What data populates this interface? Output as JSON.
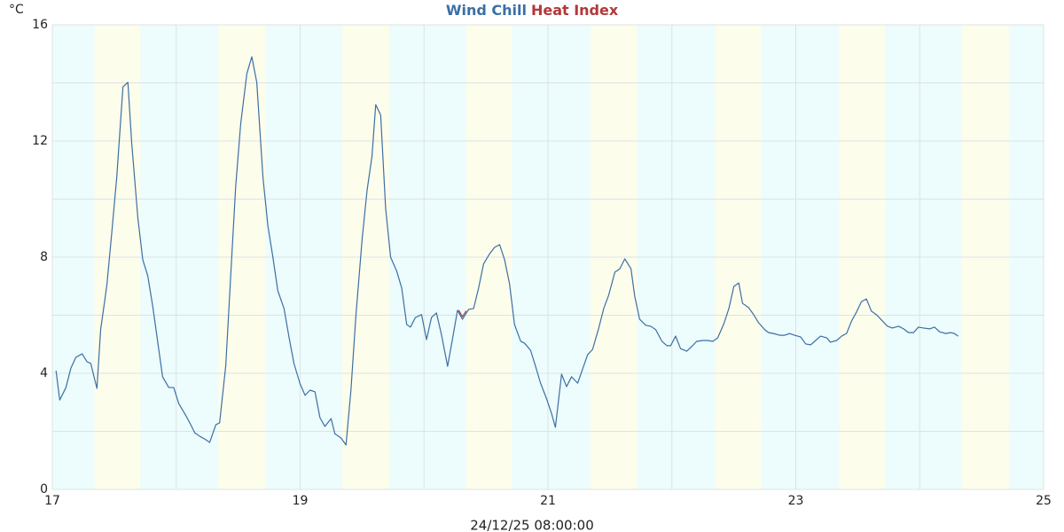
{
  "chart_data": {
    "type": "line",
    "legend": "top",
    "ylabel": "°C",
    "xlabel": "24/12/25 08:00:00",
    "xlim": [
      17,
      25
    ],
    "ylim": [
      0,
      16
    ],
    "xticks": [
      17,
      19,
      21,
      23,
      25
    ],
    "x_minor_grid": [
      18,
      20,
      22,
      24
    ],
    "yticks": [
      0,
      4,
      8,
      12,
      16
    ],
    "y_minor_grid": [
      2,
      6,
      10,
      14
    ],
    "grid": true,
    "night_color": "#edfcfc",
    "day_color": "#fdfdec",
    "daylight": [
      [
        17.34,
        17.71
      ],
      [
        18.34,
        18.72
      ],
      [
        19.34,
        19.72
      ],
      [
        20.34,
        20.71
      ],
      [
        21.34,
        21.72
      ],
      [
        22.35,
        22.72
      ],
      [
        23.35,
        23.72
      ],
      [
        24.34,
        24.72
      ]
    ],
    "series": [
      {
        "name": "Wind Chill",
        "color": "#3b6fa6",
        "x": [
          17.03,
          17.06,
          17.11,
          17.15,
          17.19,
          17.24,
          17.28,
          17.31,
          17.36,
          17.39,
          17.44,
          17.48,
          17.52,
          17.57,
          17.61,
          17.64,
          17.69,
          17.73,
          17.77,
          17.81,
          17.85,
          17.89,
          17.94,
          17.98,
          18.02,
          18.07,
          18.11,
          18.15,
          18.19,
          18.24,
          18.27,
          18.32,
          18.35,
          18.4,
          18.44,
          18.48,
          18.52,
          18.57,
          18.61,
          18.65,
          18.7,
          18.74,
          18.78,
          18.82,
          18.87,
          18.91,
          18.95,
          19.0,
          19.04,
          19.08,
          19.12,
          19.16,
          19.2,
          19.25,
          19.28,
          19.33,
          19.37,
          19.41,
          19.45,
          19.5,
          19.54,
          19.58,
          19.61,
          19.65,
          19.69,
          19.73,
          19.78,
          19.82,
          19.86,
          19.89,
          19.93,
          19.98,
          20.02,
          20.06,
          20.1,
          20.14,
          20.19,
          20.23,
          20.27,
          20.31,
          20.36,
          20.4,
          20.44,
          20.48,
          20.53,
          20.57,
          20.61,
          20.65,
          20.69,
          20.73,
          20.78,
          20.81,
          20.86,
          20.9,
          20.94,
          20.99,
          21.03,
          21.06,
          21.11,
          21.15,
          21.19,
          21.24,
          21.28,
          21.32,
          21.36,
          21.41,
          21.45,
          21.49,
          21.54,
          21.58,
          21.62,
          21.67,
          21.7,
          21.74,
          21.79,
          21.83,
          21.87,
          21.92,
          21.96,
          21.99,
          22.03,
          22.07,
          22.12,
          22.16,
          22.2,
          22.25,
          22.29,
          22.33,
          22.37,
          22.42,
          22.46,
          22.5,
          22.54,
          22.57,
          22.62,
          22.66,
          22.7,
          22.75,
          22.78,
          22.82,
          22.87,
          22.91,
          22.95,
          22.99,
          23.04,
          23.08,
          23.12,
          23.16,
          23.2,
          23.25,
          23.28,
          23.33,
          23.37,
          23.41,
          23.45,
          23.49,
          23.53,
          23.57,
          23.61,
          23.65,
          23.7,
          23.74,
          23.78,
          23.83,
          23.87,
          23.91,
          23.95,
          23.99,
          24.03,
          24.08,
          24.12,
          24.16,
          24.21,
          24.25,
          24.28,
          24.31
        ],
        "values": [
          4.09,
          3.08,
          3.51,
          4.18,
          4.55,
          4.67,
          4.4,
          4.34,
          3.48,
          5.5,
          7.02,
          8.85,
          10.75,
          13.86,
          14.02,
          11.97,
          9.37,
          7.91,
          7.36,
          6.32,
          5.1,
          3.88,
          3.51,
          3.51,
          2.96,
          2.6,
          2.29,
          1.95,
          1.83,
          1.71,
          1.62,
          2.23,
          2.29,
          4.27,
          7.39,
          10.44,
          12.58,
          14.32,
          14.9,
          14.02,
          10.75,
          9.07,
          8.0,
          6.84,
          6.23,
          5.25,
          4.34,
          3.63,
          3.24,
          3.42,
          3.36,
          2.47,
          2.17,
          2.44,
          1.92,
          1.77,
          1.53,
          3.42,
          5.98,
          8.61,
          10.29,
          11.48,
          13.25,
          12.89,
          9.68,
          8.0,
          7.51,
          6.93,
          5.68,
          5.59,
          5.92,
          6.02,
          5.16,
          5.92,
          6.08,
          5.34,
          4.24,
          5.19,
          6.17,
          5.86,
          6.2,
          6.23,
          6.93,
          7.76,
          8.12,
          8.34,
          8.43,
          7.91,
          7.08,
          5.68,
          5.1,
          5.04,
          4.79,
          4.24,
          3.66,
          3.11,
          2.6,
          2.14,
          3.97,
          3.54,
          3.88,
          3.66,
          4.15,
          4.64,
          4.82,
          5.56,
          6.23,
          6.69,
          7.48,
          7.6,
          7.94,
          7.6,
          6.66,
          5.86,
          5.65,
          5.62,
          5.5,
          5.1,
          4.95,
          4.95,
          5.28,
          4.85,
          4.76,
          4.92,
          5.1,
          5.13,
          5.13,
          5.1,
          5.22,
          5.71,
          6.23,
          6.99,
          7.11,
          6.41,
          6.26,
          6.02,
          5.74,
          5.5,
          5.4,
          5.37,
          5.31,
          5.31,
          5.37,
          5.31,
          5.25,
          5.01,
          4.98,
          5.13,
          5.28,
          5.22,
          5.07,
          5.13,
          5.28,
          5.37,
          5.8,
          6.11,
          6.47,
          6.56,
          6.14,
          6.02,
          5.8,
          5.62,
          5.56,
          5.62,
          5.53,
          5.4,
          5.4,
          5.59,
          5.56,
          5.53,
          5.59,
          5.43,
          5.37,
          5.4,
          5.37,
          5.28
        ]
      },
      {
        "name": "Heat Index",
        "color": "#b2383b",
        "x": [
          20.28,
          20.31,
          20.34
        ],
        "values": [
          6.17,
          5.95,
          6.15
        ]
      }
    ]
  }
}
